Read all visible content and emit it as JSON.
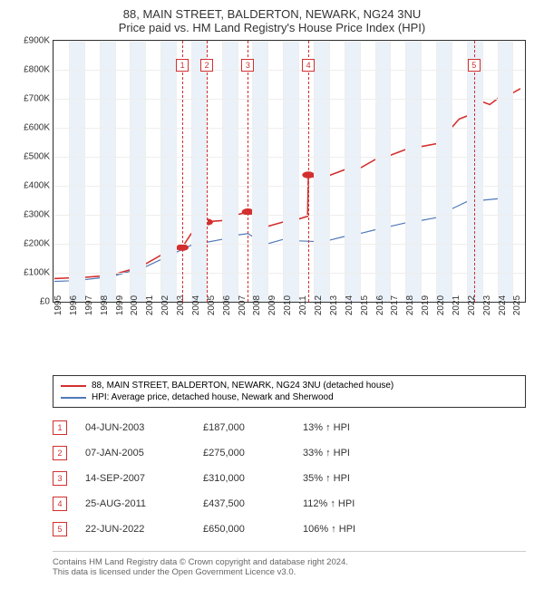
{
  "title": {
    "line1": "88, MAIN STREET, BALDERTON, NEWARK, NG24 3NU",
    "line2": "Price paid vs. HM Land Registry's House Price Index (HPI)"
  },
  "chart": {
    "type": "line",
    "ylim": [
      0,
      900000
    ],
    "ytick_step": 100000,
    "yticks": [
      "£0",
      "£100K",
      "£200K",
      "£300K",
      "£400K",
      "£500K",
      "£600K",
      "£700K",
      "£800K",
      "£900K"
    ],
    "xlim": [
      1995,
      2025.8
    ],
    "xticks": [
      1995,
      1996,
      1997,
      1998,
      1999,
      2000,
      2001,
      2002,
      2003,
      2004,
      2005,
      2006,
      2007,
      2008,
      2009,
      2010,
      2011,
      2012,
      2013,
      2014,
      2015,
      2016,
      2017,
      2018,
      2019,
      2020,
      2021,
      2022,
      2023,
      2024,
      2025
    ],
    "background_color": "#ffffff",
    "grid_color": "#eeeeee",
    "alt_band_color": "#eaf1f8",
    "series": {
      "property": {
        "color": "#d32f2f",
        "width": 1.6,
        "points": [
          [
            1995,
            80000
          ],
          [
            1996,
            82000
          ],
          [
            1997,
            84000
          ],
          [
            1998,
            88000
          ],
          [
            1999,
            95000
          ],
          [
            2000,
            110000
          ],
          [
            2001,
            130000
          ],
          [
            2002,
            160000
          ],
          [
            2003,
            180000
          ],
          [
            2003.42,
            187000
          ],
          [
            2003.5,
            195000
          ],
          [
            2004,
            235000
          ],
          [
            2005.02,
            275000
          ],
          [
            2005.5,
            278000
          ],
          [
            2006,
            280000
          ],
          [
            2007,
            300000
          ],
          [
            2007.7,
            310000
          ],
          [
            2008,
            305000
          ],
          [
            2008.5,
            275000
          ],
          [
            2009,
            260000
          ],
          [
            2010,
            275000
          ],
          [
            2011,
            285000
          ],
          [
            2011.6,
            295000
          ],
          [
            2011.65,
            437500
          ],
          [
            2012,
            430000
          ],
          [
            2012.5,
            445000
          ],
          [
            2013,
            435000
          ],
          [
            2014,
            455000
          ],
          [
            2014.5,
            470000
          ],
          [
            2015,
            460000
          ],
          [
            2016,
            490000
          ],
          [
            2017,
            505000
          ],
          [
            2018,
            525000
          ],
          [
            2019,
            535000
          ],
          [
            2020,
            545000
          ],
          [
            2020.5,
            560000
          ],
          [
            2021,
            600000
          ],
          [
            2021.5,
            630000
          ],
          [
            2022.47,
            650000
          ],
          [
            2022.6,
            710000
          ],
          [
            2023,
            690000
          ],
          [
            2023.5,
            680000
          ],
          [
            2024,
            700000
          ],
          [
            2024.5,
            690000
          ],
          [
            2025,
            720000
          ],
          [
            2025.5,
            735000
          ]
        ]
      },
      "hpi": {
        "color": "#4f79b9",
        "width": 1.2,
        "points": [
          [
            1995,
            70000
          ],
          [
            1996,
            72000
          ],
          [
            1997,
            76000
          ],
          [
            1998,
            82000
          ],
          [
            1999,
            90000
          ],
          [
            2000,
            105000
          ],
          [
            2001,
            120000
          ],
          [
            2002,
            145000
          ],
          [
            2003,
            170000
          ],
          [
            2004,
            195000
          ],
          [
            2005,
            205000
          ],
          [
            2006,
            215000
          ],
          [
            2007,
            230000
          ],
          [
            2007.7,
            235000
          ],
          [
            2008,
            225000
          ],
          [
            2009,
            200000
          ],
          [
            2010,
            215000
          ],
          [
            2011,
            210000
          ],
          [
            2012,
            208000
          ],
          [
            2013,
            212000
          ],
          [
            2014,
            225000
          ],
          [
            2015,
            235000
          ],
          [
            2016,
            248000
          ],
          [
            2017,
            260000
          ],
          [
            2018,
            272000
          ],
          [
            2019,
            280000
          ],
          [
            2020,
            290000
          ],
          [
            2021,
            320000
          ],
          [
            2022,
            345000
          ],
          [
            2023,
            350000
          ],
          [
            2024,
            355000
          ],
          [
            2025,
            360000
          ]
        ]
      }
    },
    "markers": [
      {
        "n": "1",
        "x": 2003.42,
        "y": 187000,
        "flag_y": 0.07
      },
      {
        "n": "2",
        "x": 2005.02,
        "y": 275000,
        "flag_y": 0.07
      },
      {
        "n": "3",
        "x": 2007.7,
        "y": 310000,
        "flag_y": 0.07
      },
      {
        "n": "4",
        "x": 2011.65,
        "y": 437500,
        "flag_y": 0.07
      },
      {
        "n": "5",
        "x": 2022.47,
        "y": 650000,
        "flag_y": 0.07
      }
    ]
  },
  "legend": {
    "items": [
      {
        "color": "#d32f2f",
        "label": "88, MAIN STREET, BALDERTON, NEWARK, NG24 3NU (detached house)"
      },
      {
        "color": "#4f79b9",
        "label": "HPI: Average price, detached house, Newark and Sherwood"
      }
    ]
  },
  "sales": [
    {
      "n": "1",
      "date": "04-JUN-2003",
      "price": "£187,000",
      "pct": "13% ↑ HPI"
    },
    {
      "n": "2",
      "date": "07-JAN-2005",
      "price": "£275,000",
      "pct": "33% ↑ HPI"
    },
    {
      "n": "3",
      "date": "14-SEP-2007",
      "price": "£310,000",
      "pct": "35% ↑ HPI"
    },
    {
      "n": "4",
      "date": "25-AUG-2011",
      "price": "£437,500",
      "pct": "112% ↑ HPI"
    },
    {
      "n": "5",
      "date": "22-JUN-2022",
      "price": "£650,000",
      "pct": "106% ↑ HPI"
    }
  ],
  "footer": {
    "line1": "Contains HM Land Registry data © Crown copyright and database right 2024.",
    "line2": "This data is licensed under the Open Government Licence v3.0."
  }
}
